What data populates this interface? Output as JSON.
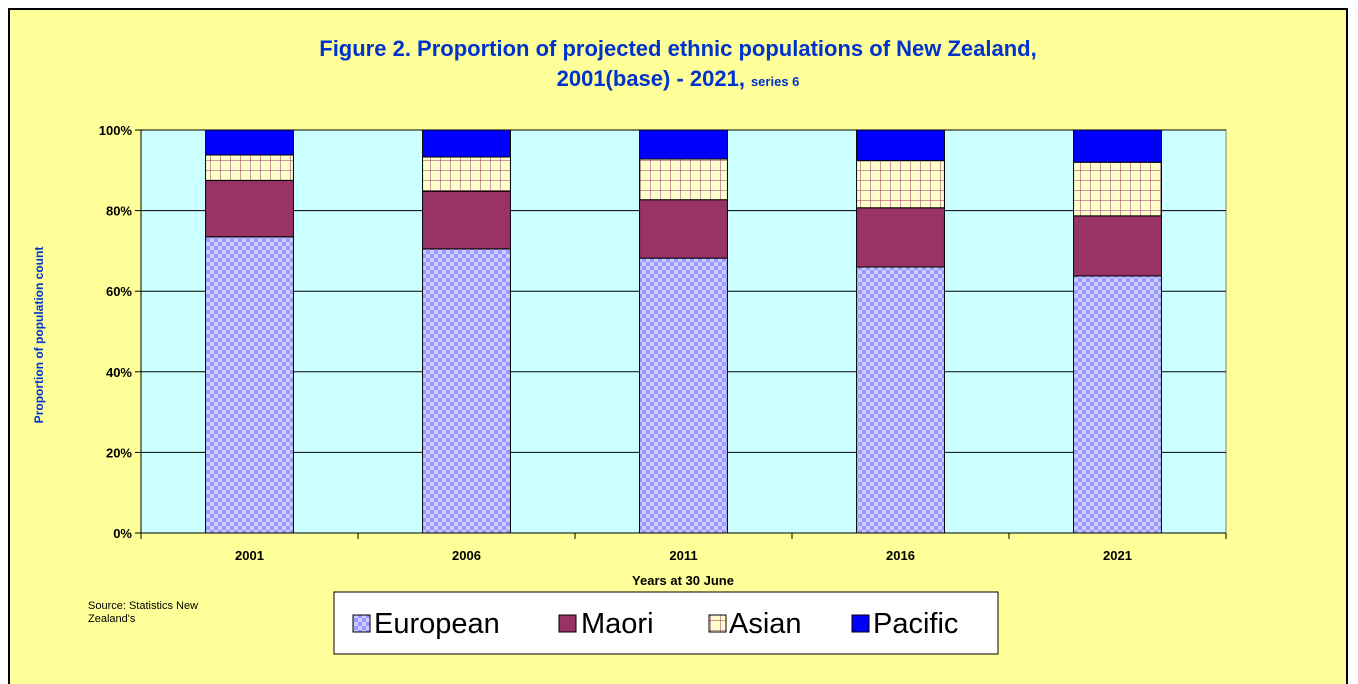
{
  "chart_data": {
    "type": "bar",
    "stacked": true,
    "title": "Figure 2. Proportion of projected ethnic populations of New Zealand,",
    "title_line2": "2001(base) - 2021,",
    "title_suffix": "series 6",
    "xlabel": "Years at 30 June",
    "ylabel": "Proportion of population count",
    "categories": [
      "2001",
      "2006",
      "2011",
      "2016",
      "2021"
    ],
    "y_ticks": [
      "0%",
      "20%",
      "40%",
      "60%",
      "80%",
      "100%"
    ],
    "ylim": [
      0,
      100
    ],
    "grid": true,
    "legend_position": "bottom",
    "series": [
      {
        "name": "European",
        "values": [
          73.5,
          70.5,
          68.2,
          66.0,
          63.8
        ],
        "color": "#9999ff",
        "pattern": "checker"
      },
      {
        "name": "Maori",
        "values": [
          14.0,
          14.3,
          14.5,
          14.7,
          14.9
        ],
        "color": "#993366",
        "pattern": "solid"
      },
      {
        "name": "Asian",
        "values": [
          6.3,
          8.5,
          10.1,
          11.7,
          13.3
        ],
        "color": "#ffffcc",
        "pattern": "grid"
      },
      {
        "name": "Pacific",
        "values": [
          6.2,
          6.7,
          7.2,
          7.6,
          8.0
        ],
        "color": "#0000ff",
        "pattern": "solid"
      }
    ],
    "source": [
      "Source: Statistics New",
      "Zealand's"
    ]
  },
  "colors": {
    "background": "#ffff99",
    "plot_area": "#ccffff",
    "title": "#0033cc"
  }
}
